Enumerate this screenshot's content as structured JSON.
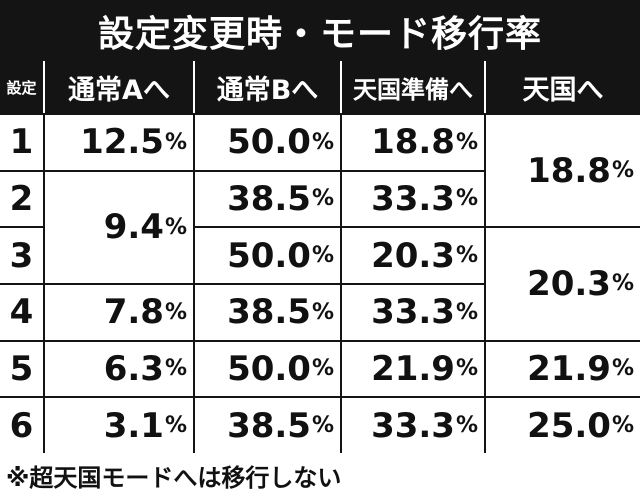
{
  "title": "設定変更時・モード移行率",
  "headers": {
    "setting": "設定",
    "normal_a": "通常Aへ",
    "normal_b": "通常Bへ",
    "pre_heaven": "天国準備へ",
    "heaven": "天国へ"
  },
  "percent_sign": "%",
  "rows": [
    {
      "setting": "1",
      "normal_a": "12.5",
      "normal_b": "50.0",
      "pre_heaven": "18.8"
    },
    {
      "setting": "2",
      "normal_b": "38.5",
      "pre_heaven": "33.3"
    },
    {
      "setting": "3",
      "normal_b": "50.0",
      "pre_heaven": "20.3"
    },
    {
      "setting": "4",
      "normal_a": "7.8",
      "normal_b": "38.5",
      "pre_heaven": "33.3"
    },
    {
      "setting": "5",
      "normal_a": "6.3",
      "normal_b": "50.0",
      "pre_heaven": "21.9"
    },
    {
      "setting": "6",
      "normal_a": "3.1",
      "normal_b": "38.5",
      "pre_heaven": "33.3"
    }
  ],
  "merged": {
    "normal_a_2_3": "9.4",
    "heaven_1_2": "18.8",
    "heaven_3_4": "20.3",
    "heaven_5": "21.9",
    "heaven_6": "25.0"
  },
  "footer_note": "※超天国モードへは移行しない"
}
